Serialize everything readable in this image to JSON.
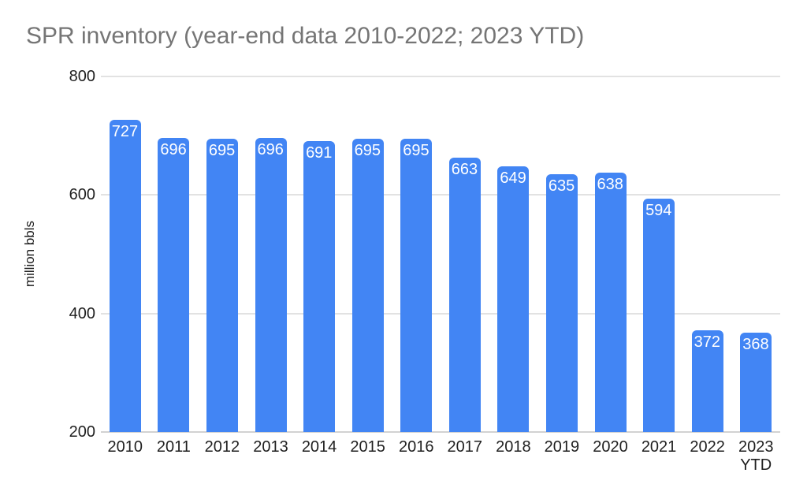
{
  "chart_data": {
    "type": "bar",
    "title": "SPR inventory (year-end data 2010-2022; 2023 YTD)",
    "ylabel": "million bbls",
    "xlabel": "",
    "categories": [
      "2010",
      "2011",
      "2012",
      "2013",
      "2014",
      "2015",
      "2016",
      "2017",
      "2018",
      "2019",
      "2020",
      "2021",
      "2022",
      "2023 YTD"
    ],
    "values": [
      727,
      696,
      695,
      696,
      691,
      695,
      695,
      663,
      649,
      635,
      638,
      594,
      372,
      368
    ],
    "ylim": [
      200,
      800
    ],
    "yticks": [
      200,
      400,
      600,
      800
    ],
    "grid": true,
    "legend": "none",
    "colors": {
      "bar": "#4285f4",
      "bar_label": "#ffffff",
      "title": "#757575",
      "axis_text": "#1f1f1f",
      "gridline": "#e2e2e2",
      "baseline": "#d2d2d2",
      "background": "#ffffff"
    }
  }
}
